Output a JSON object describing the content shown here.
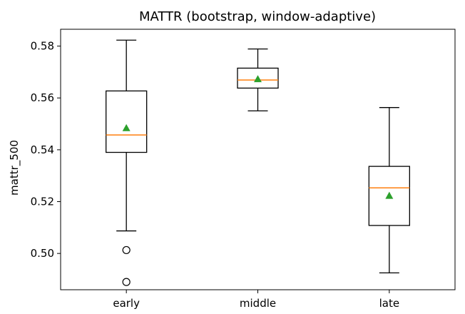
{
  "chart_data": {
    "type": "box",
    "title": "MATTR (bootstrap, window-adaptive)",
    "xlabel": "",
    "ylabel": "mattr_500",
    "categories": [
      "early",
      "middle",
      "late"
    ],
    "ylim": [
      0.486,
      0.5865
    ],
    "yticks": [
      0.5,
      0.52,
      0.54,
      0.56,
      0.58
    ],
    "ytick_labels": [
      "0.50",
      "0.52",
      "0.54",
      "0.56",
      "0.58"
    ],
    "boxes": [
      {
        "label": "early",
        "whisker_low": 0.5087,
        "q1": 0.539,
        "median": 0.5457,
        "q3": 0.5627,
        "whisker_high": 0.5823,
        "mean": 0.5484,
        "outliers": [
          0.5013,
          0.489
        ]
      },
      {
        "label": "middle",
        "whisker_low": 0.555,
        "q1": 0.5638,
        "median": 0.5669,
        "q3": 0.5715,
        "whisker_high": 0.5789,
        "mean": 0.5673,
        "outliers": []
      },
      {
        "label": "late",
        "whisker_low": 0.4925,
        "q1": 0.5108,
        "median": 0.5253,
        "q3": 0.5336,
        "whisker_high": 0.5563,
        "mean": 0.5223,
        "outliers": []
      }
    ],
    "colors": {
      "box": "#000000",
      "median": "#ff7f0e",
      "mean": "#2ca02c",
      "outlier_edge": "#000000"
    },
    "grid": false,
    "legend": "none"
  }
}
